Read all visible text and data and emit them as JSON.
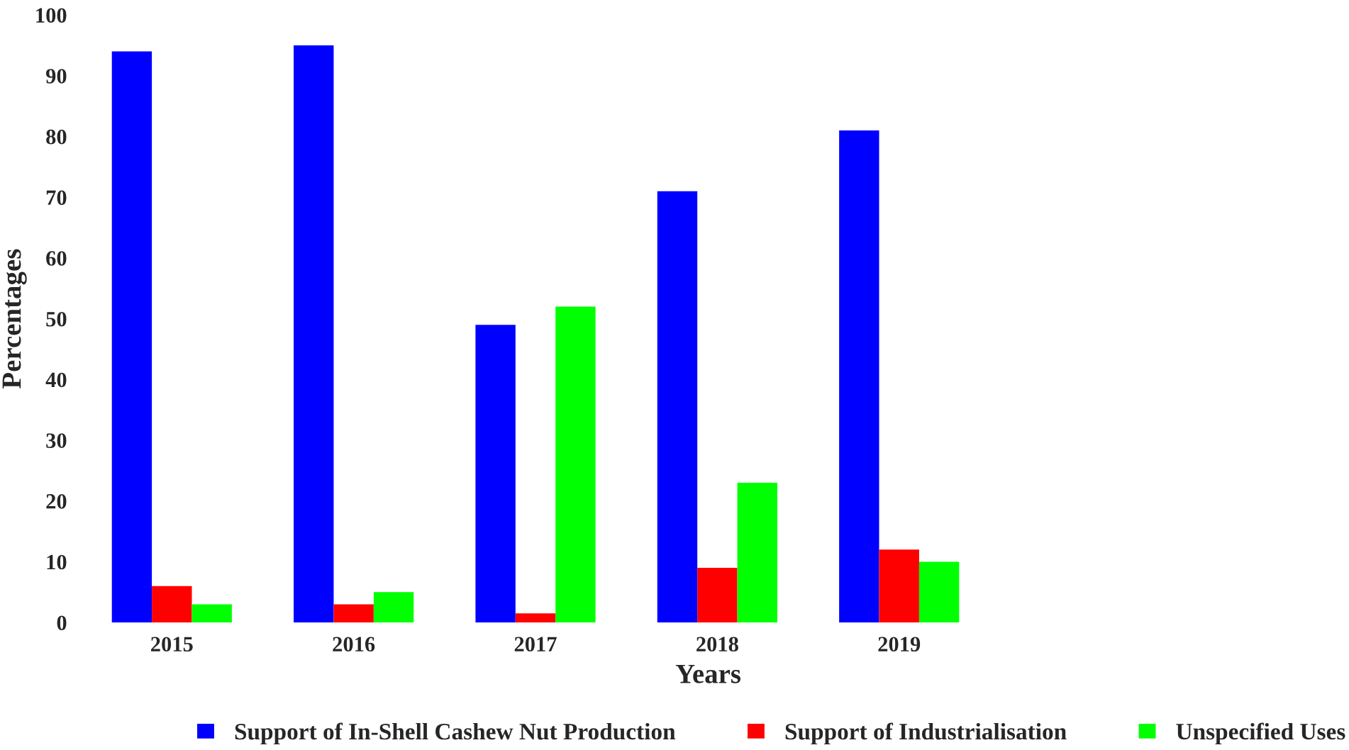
{
  "chart_data": {
    "type": "bar",
    "xlabel": "Years",
    "ylabel": "Percentages",
    "categories": [
      "2015",
      "2016",
      "2017",
      "2018",
      "2019"
    ],
    "series": [
      {
        "name": "Support of In-Shell Cashew Nut Production",
        "color": "#0000ff",
        "values": [
          94,
          95,
          49,
          71,
          81
        ]
      },
      {
        "name": "Support of Industrialisation",
        "color": "#ff0000",
        "values": [
          6,
          3,
          1.5,
          9,
          12
        ]
      },
      {
        "name": "Unspecified Uses",
        "color": "#00ff00",
        "values": [
          3,
          5,
          52,
          23,
          10
        ]
      }
    ],
    "ylim": [
      0,
      100
    ],
    "yticks": [
      0,
      10,
      20,
      30,
      40,
      50,
      60,
      70,
      80,
      90,
      100
    ],
    "grid": false,
    "legend": "bottom"
  }
}
